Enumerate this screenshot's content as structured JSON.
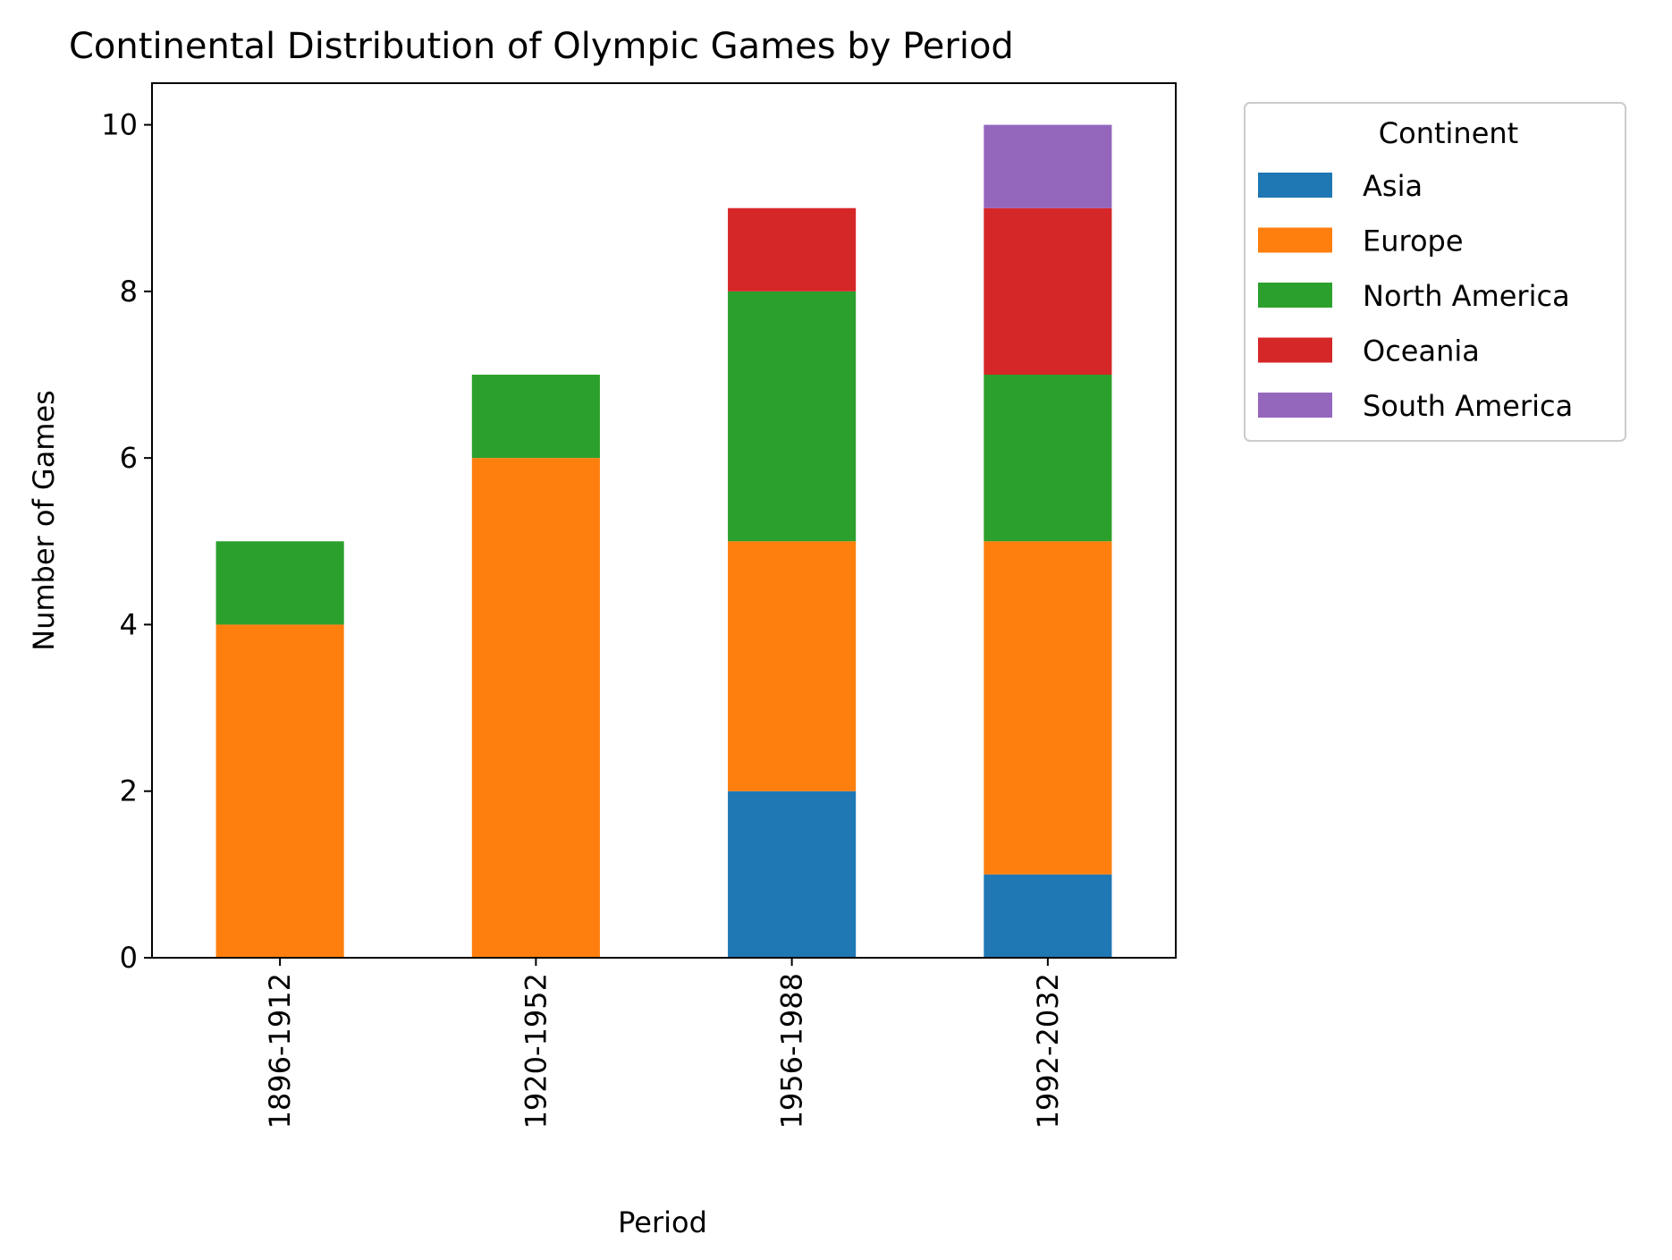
{
  "chart_data": {
    "type": "bar",
    "stacked": true,
    "title": "Continental Distribution of Olympic Games by Period",
    "xlabel": "Period",
    "ylabel": "Number of Games",
    "categories": [
      "1896-1912",
      "1920-1952",
      "1956-1988",
      "1992-2032"
    ],
    "ylim": [
      0,
      10.5
    ],
    "yticks": [
      0,
      2,
      4,
      6,
      8,
      10
    ],
    "grid": false,
    "legend": {
      "title": "Continent",
      "placement": "outside-top-right"
    },
    "series": [
      {
        "name": "Asia",
        "color": "#1f77b4",
        "values": [
          0,
          0,
          2,
          1
        ]
      },
      {
        "name": "Europe",
        "color": "#ff7f0e",
        "values": [
          4,
          6,
          3,
          4
        ]
      },
      {
        "name": "North America",
        "color": "#2ca02c",
        "values": [
          1,
          1,
          3,
          2
        ]
      },
      {
        "name": "Oceania",
        "color": "#d62728",
        "values": [
          0,
          0,
          1,
          2
        ]
      },
      {
        "name": "South America",
        "color": "#9467bd",
        "values": [
          0,
          0,
          0,
          1
        ]
      }
    ]
  }
}
